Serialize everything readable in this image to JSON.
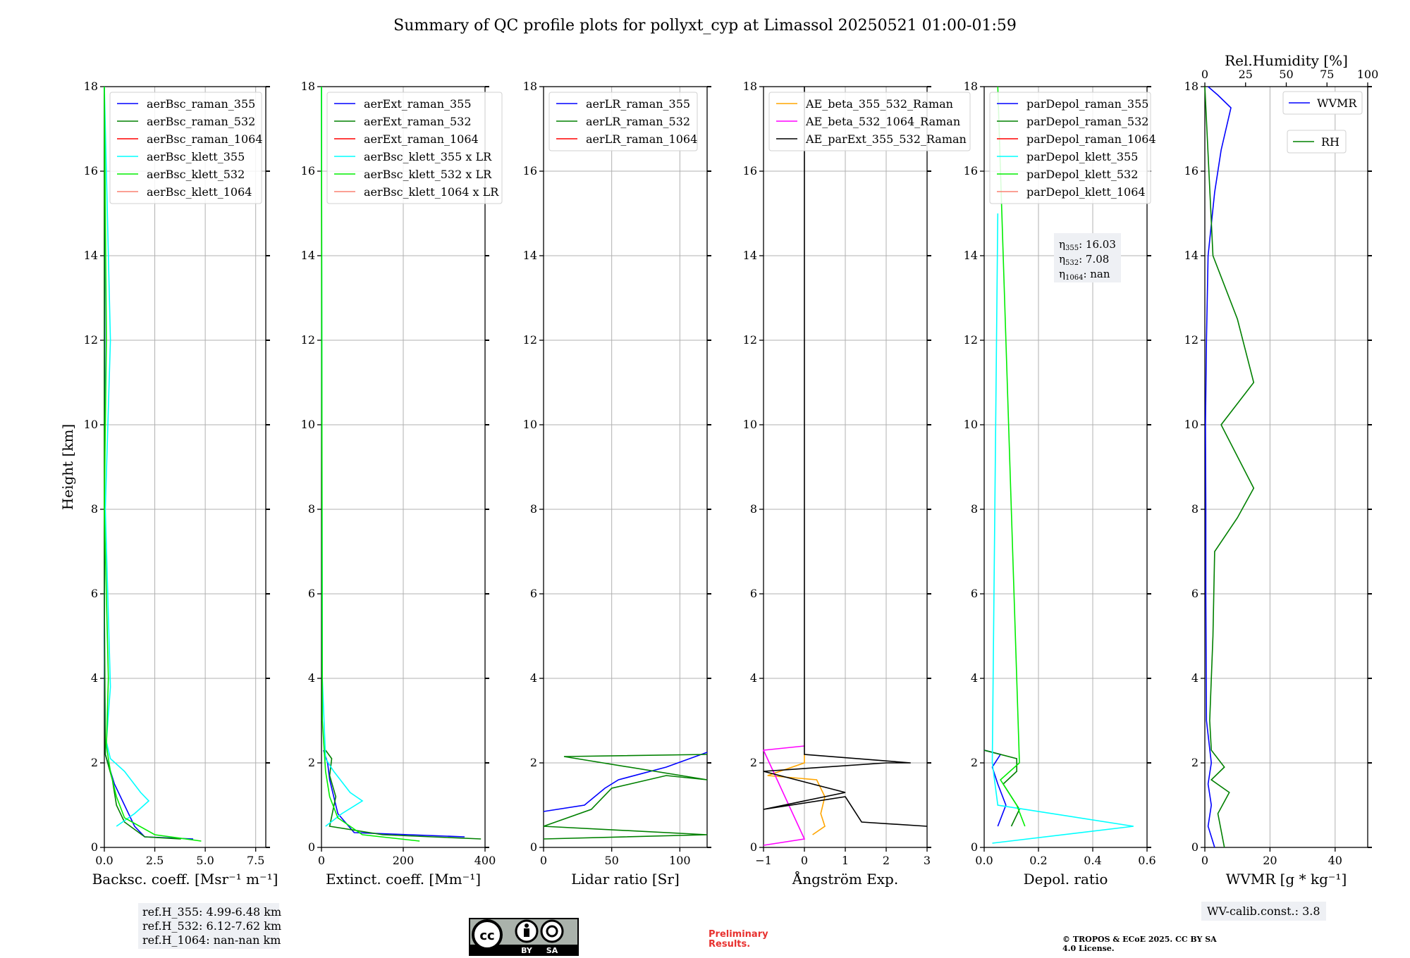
{
  "title": "Summary of QC profile plots for pollyxt_cyp at Limassol 20250521 01:00-01:59",
  "panels": {
    "p1": {
      "xlabel": "Backsc. coeff. [Msr⁻¹ m⁻¹]",
      "ylabel": "Height [km]",
      "xticks": [
        "0.0",
        "2.5",
        "5.0",
        "7.5"
      ],
      "yticks": [
        "0",
        "2",
        "4",
        "6",
        "8",
        "10",
        "12",
        "14",
        "16",
        "18"
      ],
      "legend": [
        "aerBsc_raman_355",
        "aerBsc_raman_532",
        "aerBsc_raman_1064",
        "aerBsc_klett_355",
        "aerBsc_klett_532",
        "aerBsc_klett_1064"
      ],
      "colors": [
        "#0000ff",
        "#008000",
        "#ff0000",
        "#00ffff",
        "#00ee00",
        "#fa8072"
      ]
    },
    "p2": {
      "xlabel": "Extinct. coeff. [Mm⁻¹]",
      "xticks": [
        "0",
        "200",
        "400"
      ],
      "yticks": [
        "0",
        "2",
        "4",
        "6",
        "8",
        "10",
        "12",
        "14",
        "16",
        "18"
      ],
      "legend": [
        "aerExt_raman_355",
        "aerExt_raman_532",
        "aerExt_raman_1064",
        "aerBsc_klett_355 x LR",
        "aerBsc_klett_532 x LR",
        "aerBsc_klett_1064 x LR"
      ],
      "colors": [
        "#0000ff",
        "#008000",
        "#ff0000",
        "#00ffff",
        "#00ee00",
        "#fa8072"
      ]
    },
    "p3": {
      "xlabel": "Lidar ratio [Sr]",
      "xticks": [
        "0",
        "50",
        "100"
      ],
      "yticks": [
        "0",
        "2",
        "4",
        "6",
        "8",
        "10",
        "12",
        "14",
        "16",
        "18"
      ],
      "legend": [
        "aerLR_raman_355",
        "aerLR_raman_532",
        "aerLR_raman_1064"
      ],
      "colors": [
        "#0000ff",
        "#008000",
        "#ff0000"
      ]
    },
    "p4": {
      "xlabel": "Ångström Exp.",
      "xticks": [
        "−1",
        "0",
        "1",
        "2",
        "3"
      ],
      "yticks": [
        "0",
        "2",
        "4",
        "6",
        "8",
        "10",
        "12",
        "14",
        "16",
        "18"
      ],
      "legend": [
        "AE_beta_355_532_Raman",
        "AE_beta_532_1064_Raman",
        "AE_parExt_355_532_Raman"
      ],
      "colors": [
        "#ffa500",
        "#ff00ff",
        "#000000"
      ]
    },
    "p5": {
      "xlabel": "Depol. ratio",
      "xticks": [
        "0.0",
        "0.2",
        "0.4",
        "0.6"
      ],
      "yticks": [
        "0",
        "2",
        "4",
        "6",
        "8",
        "10",
        "12",
        "14",
        "16",
        "18"
      ],
      "legend": [
        "parDepol_raman_355",
        "parDepol_raman_532",
        "parDepol_raman_1064",
        "parDepol_klett_355",
        "parDepol_klett_532",
        "parDepol_klett_1064"
      ],
      "colors": [
        "#0000ff",
        "#008000",
        "#ff0000",
        "#00ffff",
        "#00ee00",
        "#fa8072"
      ],
      "eta": [
        {
          "label": "η",
          "sub": "355",
          "value": ": 16.03"
        },
        {
          "label": "η",
          "sub": "532",
          "value": ": 7.08"
        },
        {
          "label": "η",
          "sub": "1064",
          "value": ": nan"
        }
      ]
    },
    "p6": {
      "xlabel": "WVMR [g * kg⁻¹]",
      "xlabel_top": "Rel.Humidity [%]",
      "xticks": [
        "0",
        "20",
        "40"
      ],
      "xticks_top": [
        "0",
        "25",
        "50",
        "75",
        "100"
      ],
      "yticks": [
        "0",
        "2",
        "4",
        "6",
        "8",
        "10",
        "12",
        "14",
        "16",
        "18"
      ],
      "legend_wvmr": "WVMR",
      "legend_rh": "RH",
      "colors": [
        "#0000ff",
        "#008000"
      ]
    }
  },
  "ref_heights": [
    "ref.H_355: 4.99-6.48 km",
    "ref.H_532: 6.12-7.62 km",
    "ref.H_1064: nan-nan km"
  ],
  "wv_calib": "WV-calib.const.: 3.8",
  "preliminary": "Preliminary Results.",
  "copyright": "© TROPOS & ECoE 2025. CC BY SA 4.0 License.",
  "cc_badge": {
    "cc": "cc",
    "by": "BY",
    "sa": "SA"
  },
  "chart_data": [
    {
      "type": "line",
      "panel": "p1",
      "xlabel": "Backsc. coeff. [Msr⁻¹ m⁻¹]",
      "ylabel": "Height [km]",
      "xlim": [
        0,
        8
      ],
      "ylim": [
        0,
        18
      ],
      "series": [
        {
          "name": "aerBsc_raman_355",
          "x": [
            4.4,
            2.0,
            1.5,
            1.0,
            0.5,
            0.05,
            0.0,
            0.02,
            0.0
          ],
          "y": [
            0.2,
            0.25,
            0.5,
            1.0,
            1.5,
            2.2,
            5,
            12,
            18
          ]
        },
        {
          "name": "aerBsc_raman_532",
          "x": [
            3.8,
            2.0,
            1.0,
            0.6,
            0.4,
            0.05,
            0.0,
            0.0
          ],
          "y": [
            0.2,
            0.25,
            0.6,
            1.0,
            1.6,
            2.2,
            6,
            18
          ]
        },
        {
          "name": "aerBsc_klett_355",
          "x": [
            0.6,
            1.5,
            2.2,
            1.8,
            1.0,
            0.3,
            0.1,
            0.3,
            0.05,
            0.3,
            0.0
          ],
          "y": [
            0.5,
            0.8,
            1.1,
            1.3,
            1.8,
            2.1,
            2.5,
            3.8,
            8,
            12,
            18
          ]
        },
        {
          "name": "aerBsc_klett_532",
          "x": [
            4.8,
            2.5,
            1.0,
            0.6,
            0.3,
            0.1,
            0.2,
            0.0,
            0.1,
            0.0
          ],
          "y": [
            0.15,
            0.3,
            0.7,
            1.2,
            1.8,
            2.4,
            4,
            8,
            12,
            18
          ]
        }
      ]
    },
    {
      "type": "line",
      "panel": "p2",
      "xlabel": "Extinct. coeff. [Mm⁻¹]",
      "xlim": [
        0,
        400
      ],
      "ylim": [
        0,
        18
      ],
      "series": [
        {
          "name": "aerExt_raman_355",
          "x": [
            350,
            80,
            40,
            30,
            20,
            15,
            5
          ],
          "y": [
            0.25,
            0.35,
            0.8,
            1.2,
            1.6,
            2.0,
            2.3
          ]
        },
        {
          "name": "aerExt_raman_532",
          "x": [
            390,
            150,
            20,
            35,
            20,
            25,
            10
          ],
          "y": [
            0.2,
            0.3,
            0.5,
            1.2,
            1.7,
            2.1,
            2.3
          ]
        },
        {
          "name": "aerBsc_klett_355 x LR",
          "x": [
            10,
            50,
            100,
            70,
            30,
            10,
            2,
            0
          ],
          "y": [
            0.5,
            0.8,
            1.1,
            1.3,
            1.8,
            2.1,
            4,
            18
          ]
        },
        {
          "name": "aerBsc_klett_532 x LR",
          "x": [
            240,
            100,
            40,
            20,
            10,
            2,
            0
          ],
          "y": [
            0.15,
            0.3,
            0.7,
            1.2,
            1.8,
            3,
            18
          ]
        }
      ]
    },
    {
      "type": "line",
      "panel": "p3",
      "xlabel": "Lidar ratio [Sr]",
      "xlim": [
        0,
        120
      ],
      "ylim": [
        0,
        18
      ],
      "series": [
        {
          "name": "aerLR_raman_355",
          "x": [
            0,
            30,
            45,
            55,
            90,
            120
          ],
          "y": [
            0.85,
            1.0,
            1.4,
            1.6,
            1.9,
            2.25
          ]
        },
        {
          "name": "aerLR_raman_532",
          "x": [
            0,
            120,
            0,
            35,
            50,
            90,
            120,
            15,
            120
          ],
          "y": [
            0.2,
            0.3,
            0.5,
            0.9,
            1.4,
            1.7,
            1.6,
            2.15,
            2.2
          ]
        }
      ]
    },
    {
      "type": "line",
      "panel": "p4",
      "xlabel": "Ångström Exp.",
      "xlim": [
        -1,
        3
      ],
      "ylim": [
        0,
        18
      ],
      "series": [
        {
          "name": "AE_beta_355_532_Raman",
          "x": [
            0.2,
            0.5,
            0.4,
            0.5,
            0.3,
            -0.9,
            0.0,
            0.0
          ],
          "y": [
            0.3,
            0.5,
            0.8,
            1.2,
            1.6,
            1.7,
            2.0,
            2.2
          ]
        },
        {
          "name": "AE_beta_532_1064_Raman",
          "x": [
            -1,
            0.0,
            -1,
            0.0
          ],
          "y": [
            0.05,
            0.2,
            2.3,
            2.4
          ]
        },
        {
          "name": "AE_parExt_355_532_Raman",
          "x": [
            3,
            1.4,
            1.0,
            -1,
            1.0,
            -1,
            2.0,
            2.6,
            0.0,
            0.0
          ],
          "y": [
            0.5,
            0.6,
            1.2,
            0.9,
            1.3,
            1.8,
            2.0,
            2.0,
            2.2,
            18
          ]
        }
      ]
    },
    {
      "type": "line",
      "panel": "p5",
      "xlabel": "Depol. ratio",
      "xlim": [
        0,
        0.6
      ],
      "ylim": [
        0,
        18
      ],
      "series": [
        {
          "name": "parDepol_raman_355",
          "x": [
            0.05,
            0.08,
            0.05,
            0.03,
            0.06,
            0.0
          ],
          "y": [
            0.5,
            1.0,
            1.5,
            1.9,
            2.2,
            2.3
          ]
        },
        {
          "name": "parDepol_raman_532",
          "x": [
            0.1,
            0.13,
            0.07,
            0.12,
            0.12,
            0.0
          ],
          "y": [
            0.5,
            0.9,
            1.5,
            1.8,
            2.1,
            2.3
          ]
        },
        {
          "name": "parDepol_klett_355",
          "x": [
            0.03,
            0.55,
            0.05,
            0.03,
            0.05
          ],
          "y": [
            0.1,
            0.5,
            1.0,
            2.0,
            15
          ]
        },
        {
          "name": "parDepol_klett_532",
          "x": [
            0.15,
            0.12,
            0.06,
            0.13,
            0.05
          ],
          "y": [
            0.5,
            1.0,
            1.6,
            2.0,
            18
          ]
        }
      ]
    },
    {
      "type": "line",
      "panel": "p6",
      "xlabel": "WVMR [g * kg⁻¹]",
      "xlabel_top": "Rel.Humidity [%]",
      "xlim": [
        0,
        50
      ],
      "xlim_top": [
        0,
        100
      ],
      "ylim": [
        0,
        18
      ],
      "series": [
        {
          "name": "WVMR",
          "x": [
            3,
            1,
            2,
            1,
            2,
            0.5,
            0.3,
            0.3,
            0.2,
            0.5,
            1,
            3,
            5,
            8,
            4,
            1
          ],
          "y": [
            0.0,
            0.5,
            1.0,
            1.5,
            2.0,
            3,
            6,
            8,
            10,
            12,
            14,
            15.5,
            16.5,
            17.5,
            17.8,
            18
          ]
        },
        {
          "name": "RH",
          "x": [
            12,
            8,
            15,
            4,
            12,
            4,
            3,
            5,
            6,
            20,
            30,
            10,
            30,
            20,
            5,
            0
          ],
          "y": [
            0.0,
            0.8,
            1.3,
            1.6,
            1.9,
            2.3,
            3,
            5,
            7,
            7.8,
            8.5,
            10,
            11,
            12.5,
            14,
            18
          ]
        }
      ]
    }
  ]
}
